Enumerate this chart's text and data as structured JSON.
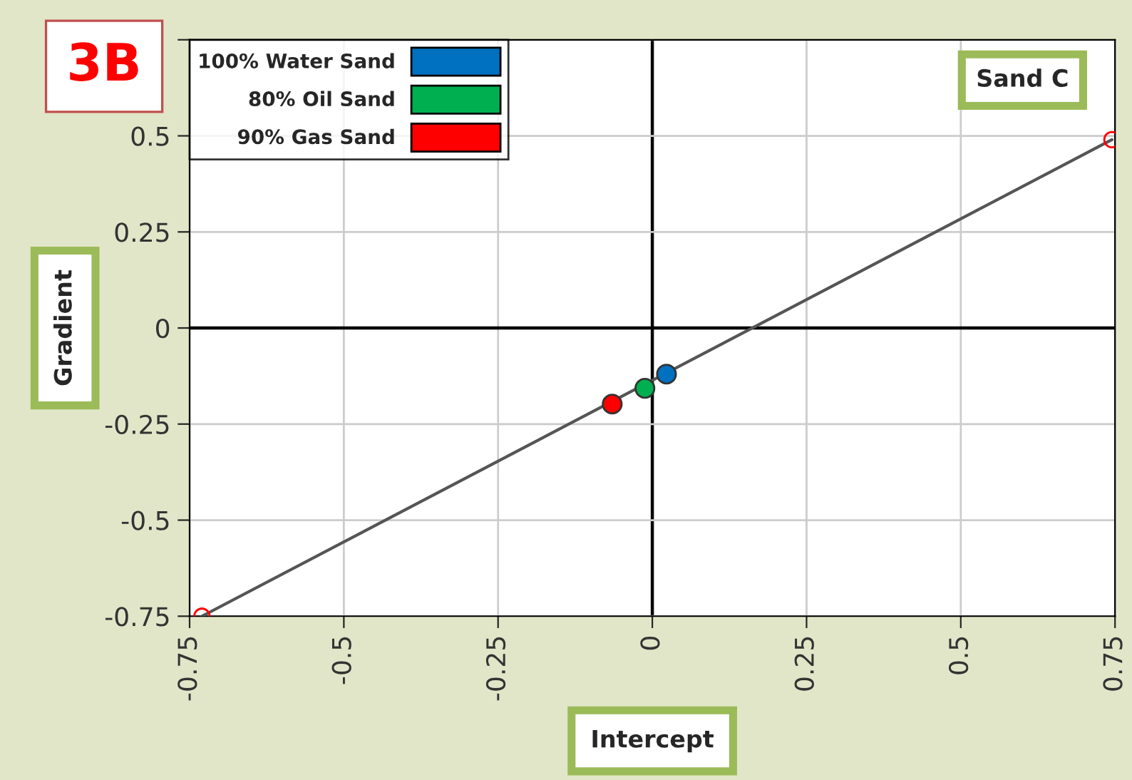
{
  "chart_data": {
    "type": "scatter",
    "xlabel": "Intercept",
    "ylabel": "Gradient",
    "annotations": [
      "3B",
      "Sand C"
    ],
    "series": [
      {
        "name": "100% Water Sand",
        "color": "#0070c0",
        "x": [
          0.023
        ],
        "values": [
          -0.12
        ]
      },
      {
        "name": "80% Oil Sand",
        "color": "#00b050",
        "x": [
          -0.012
        ],
        "values": [
          -0.157
        ]
      },
      {
        "name": "90% Gas Sand",
        "color": "#ff0000",
        "x": [
          -0.065
        ],
        "values": [
          -0.198
        ]
      },
      {
        "type": "line",
        "color": "#555555",
        "x": [
          -0.73,
          0.745
        ],
        "values": [
          -0.75,
          0.49
        ],
        "marker": "none"
      },
      {
        "color": "#ff0000",
        "x": [
          -0.73,
          0.745
        ],
        "values": [
          -0.75,
          0.49
        ],
        "marker": "circle"
      }
    ],
    "xlim": [
      -0.75,
      0.75
    ],
    "xticks": [
      -0.75,
      -0.5,
      -0.25,
      0,
      0.25,
      0.5,
      0.75
    ],
    "ylim": [
      -0.75,
      0.75
    ],
    "yticks": [
      -0.75,
      -0.5,
      -0.25,
      0,
      0.25,
      0.5,
      {
        "value": 0.75,
        "label": null
      }
    ],
    "grid": true,
    "legend": "top left",
    "marker": "circle"
  }
}
